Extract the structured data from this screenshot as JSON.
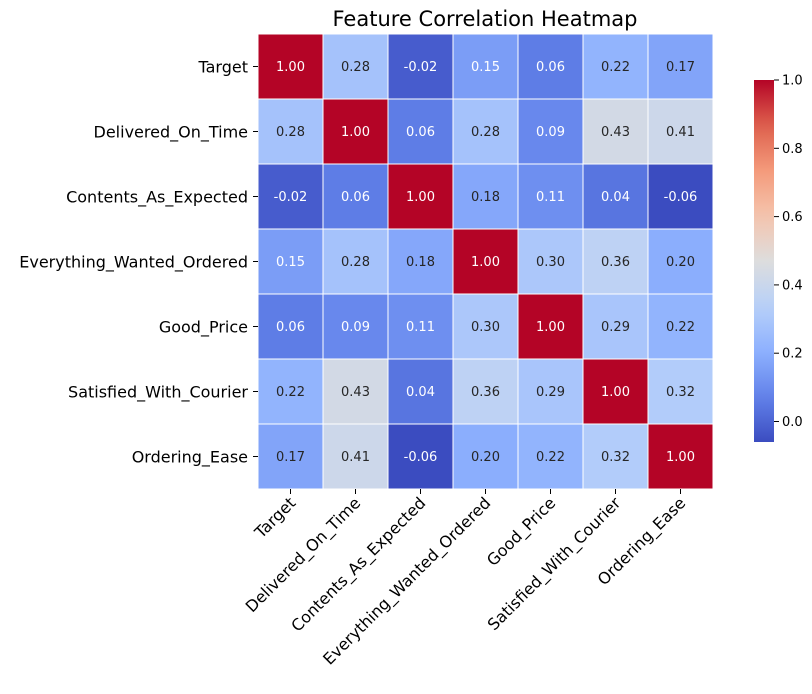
{
  "chart_data": {
    "type": "heatmap",
    "title": "Feature Correlation Heatmap",
    "xlabel": "",
    "ylabel": "",
    "rows": [
      "Target",
      "Delivered_On_Time",
      "Contents_As_Expected",
      "Everything_Wanted_Ordered",
      "Good_Price",
      "Satisfied_With_Courier",
      "Ordering_Ease"
    ],
    "columns": [
      "Target",
      "Delivered_On_Time",
      "Contents_As_Expected",
      "Everything_Wanted_Ordered",
      "Good_Price",
      "Satisfied_With_Courier",
      "Ordering_Ease"
    ],
    "values": [
      [
        1.0,
        0.28,
        -0.02,
        0.15,
        0.06,
        0.22,
        0.17
      ],
      [
        0.28,
        1.0,
        0.06,
        0.28,
        0.09,
        0.43,
        0.41
      ],
      [
        -0.02,
        0.06,
        1.0,
        0.18,
        0.11,
        0.04,
        -0.06
      ],
      [
        0.15,
        0.28,
        0.18,
        1.0,
        0.3,
        0.36,
        0.2
      ],
      [
        0.06,
        0.09,
        0.11,
        0.3,
        1.0,
        0.29,
        0.22
      ],
      [
        0.22,
        0.43,
        0.04,
        0.36,
        0.29,
        1.0,
        0.32
      ],
      [
        0.17,
        0.41,
        -0.06,
        0.2,
        0.22,
        0.32,
        1.0
      ]
    ],
    "cell_labels": [
      [
        "1.00",
        "0.28",
        "-0.02",
        "0.15",
        "0.06",
        "0.22",
        "0.17"
      ],
      [
        "0.28",
        "1.00",
        "0.06",
        "0.28",
        "0.09",
        "0.43",
        "0.41"
      ],
      [
        "-0.02",
        "0.06",
        "1.00",
        "0.18",
        "0.11",
        "0.04",
        "-0.06"
      ],
      [
        "0.15",
        "0.28",
        "0.18",
        "1.00",
        "0.30",
        "0.36",
        "0.20"
      ],
      [
        "0.06",
        "0.09",
        "0.11",
        "0.30",
        "1.00",
        "0.29",
        "0.22"
      ],
      [
        "0.22",
        "0.43",
        "0.04",
        "0.36",
        "0.29",
        "1.00",
        "0.32"
      ],
      [
        "0.17",
        "0.41",
        "-0.06",
        "0.20",
        "0.22",
        "0.32",
        "1.00"
      ]
    ],
    "colormap": "coolwarm",
    "color_range": [
      -0.06,
      1.0
    ],
    "colorbar": {
      "ticks": [
        0.0,
        0.2,
        0.4,
        0.6,
        0.8,
        1.0
      ],
      "tick_labels": [
        "0.0",
        "0.2",
        "0.4",
        "0.6",
        "0.8",
        "1.0"
      ]
    },
    "grid": false,
    "legend": "colorbar at right"
  }
}
